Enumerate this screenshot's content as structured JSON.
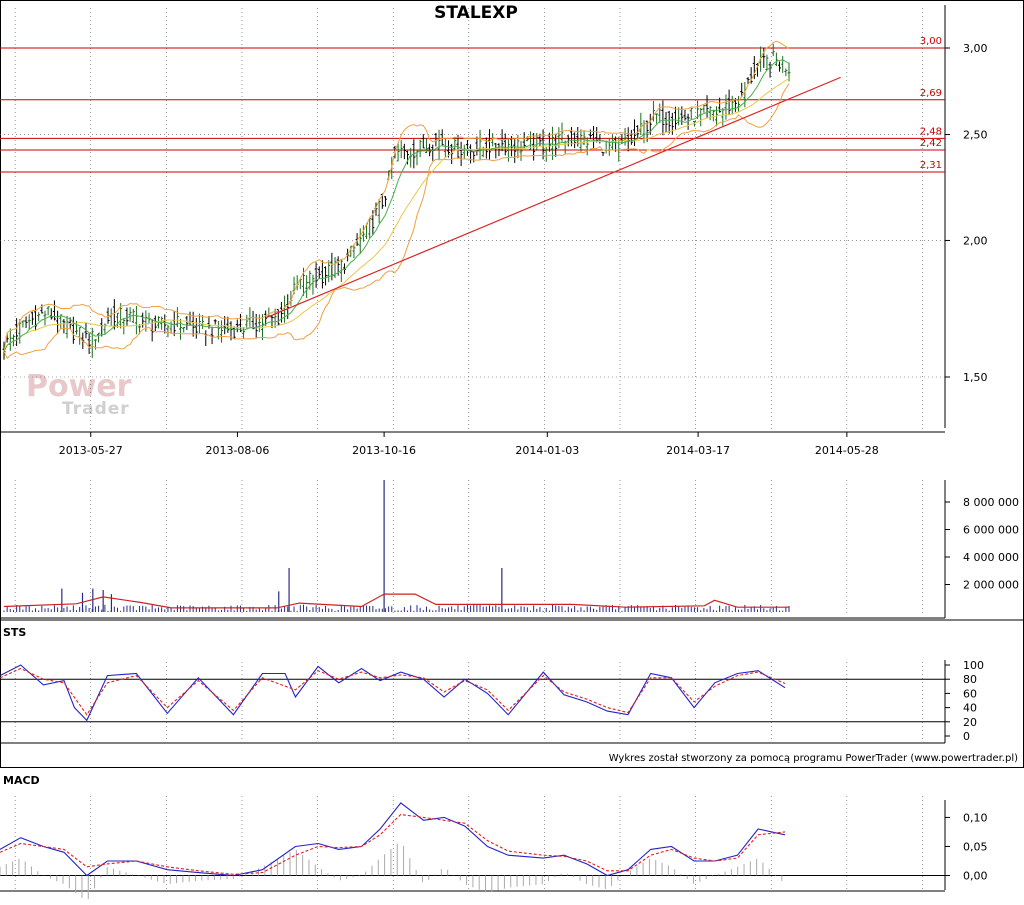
{
  "chart_data": [
    {
      "type": "candlestick",
      "title": "STALEXP",
      "x_ticks": [
        "2013-05-27",
        "2013-08-06",
        "2013-10-16",
        "2014-01-03",
        "2014-03-17",
        "2014-05-28"
      ],
      "y_ticks": [
        "1,50",
        "2,00",
        "2,50",
        "3,00"
      ],
      "y_tick_values": [
        1.5,
        2.0,
        2.5,
        3.0
      ],
      "y_scale": "log",
      "ylim": [
        1.32,
        3.1
      ],
      "date_range": [
        "2013-04-15",
        "2014-04-30"
      ],
      "grid": true,
      "horizontal_levels": [
        {
          "label": "3,00",
          "value": 3.0
        },
        {
          "label": "2,69",
          "value": 2.69
        },
        {
          "label": "2,48",
          "value": 2.48
        },
        {
          "label": "2,42",
          "value": 2.42
        },
        {
          "label": "2,31",
          "value": 2.31
        }
      ],
      "trendline": {
        "from": [
          "2013-08-20",
          1.7
        ],
        "to": [
          "2014-05-25",
          2.82
        ]
      },
      "close_path": [
        [
          "2013-04-15",
          1.6
        ],
        [
          "2013-04-25",
          1.68
        ],
        [
          "2013-05-06",
          1.72
        ],
        [
          "2013-05-16",
          1.66
        ],
        [
          "2013-05-27",
          1.62
        ],
        [
          "2013-06-06",
          1.71
        ],
        [
          "2013-06-17",
          1.7
        ],
        [
          "2013-06-27",
          1.67
        ],
        [
          "2013-07-08",
          1.68
        ],
        [
          "2013-07-18",
          1.66
        ],
        [
          "2013-07-29",
          1.66
        ],
        [
          "2013-08-06",
          1.66
        ],
        [
          "2013-08-16",
          1.68
        ],
        [
          "2013-08-26",
          1.7
        ],
        [
          "2013-09-05",
          1.83
        ],
        [
          "2013-09-16",
          1.86
        ],
        [
          "2013-09-26",
          1.9
        ],
        [
          "2013-10-07",
          2.03
        ],
        [
          "2013-10-16",
          2.18
        ],
        [
          "2013-10-21",
          2.4
        ],
        [
          "2013-10-31",
          2.42
        ],
        [
          "2013-11-11",
          2.47
        ],
        [
          "2013-11-21",
          2.42
        ],
        [
          "2013-12-02",
          2.43
        ],
        [
          "2013-12-12",
          2.45
        ],
        [
          "2013-12-23",
          2.44
        ],
        [
          "2014-01-03",
          2.45
        ],
        [
          "2014-01-13",
          2.48
        ],
        [
          "2014-01-24",
          2.47
        ],
        [
          "2014-02-03",
          2.43
        ],
        [
          "2014-02-13",
          2.47
        ],
        [
          "2014-02-24",
          2.6
        ],
        [
          "2014-03-06",
          2.58
        ],
        [
          "2014-03-17",
          2.61
        ],
        [
          "2014-03-27",
          2.62
        ],
        [
          "2014-04-07",
          2.7
        ],
        [
          "2014-04-14",
          2.88
        ],
        [
          "2014-04-22",
          2.93
        ],
        [
          "2014-04-30",
          2.88
        ]
      ],
      "colors": {
        "bars": "#1a6e1a",
        "bars_down": "#000000",
        "ma_short": "#4caf50",
        "ma_long": "#e6c84a",
        "bollinger": "#f0a040",
        "levels": "#cc0000",
        "trendline": "#dd2222"
      }
    },
    {
      "type": "bar",
      "name": "volume",
      "y_ticks": [
        "2 000 000",
        "4 000 000",
        "6 000 000",
        "8 000 000"
      ],
      "y_tick_values": [
        2000000,
        4000000,
        6000000,
        8000000
      ],
      "ylim": [
        0,
        9600000
      ],
      "spikes": [
        [
          "2013-05-13",
          1700000
        ],
        [
          "2013-05-23",
          1400000
        ],
        [
          "2013-05-28",
          1700000
        ],
        [
          "2013-06-02",
          1600000
        ],
        [
          "2013-06-06",
          1300000
        ],
        [
          "2013-08-26",
          1500000
        ],
        [
          "2013-08-31",
          3200000
        ],
        [
          "2013-10-16",
          9600000
        ],
        [
          "2013-12-12",
          3200000
        ]
      ],
      "avg_path": [
        [
          "2013-04-15",
          400000
        ],
        [
          "2013-05-20",
          600000
        ],
        [
          "2013-06-02",
          1100000
        ],
        [
          "2013-06-20",
          700000
        ],
        [
          "2013-07-05",
          300000
        ],
        [
          "2013-08-25",
          300000
        ],
        [
          "2013-09-05",
          650000
        ],
        [
          "2013-10-05",
          400000
        ],
        [
          "2013-10-16",
          1300000
        ],
        [
          "2013-10-31",
          1300000
        ],
        [
          "2013-11-10",
          550000
        ],
        [
          "2014-01-15",
          550000
        ],
        [
          "2014-02-10",
          350000
        ],
        [
          "2014-03-20",
          450000
        ],
        [
          "2014-03-25",
          850000
        ],
        [
          "2014-04-05",
          350000
        ],
        [
          "2014-04-30",
          350000
        ]
      ],
      "colors": {
        "bars": "#2a2a8a",
        "avg": "#cc2222"
      }
    },
    {
      "type": "line",
      "name": "STS",
      "label": "STS",
      "y_ticks": [
        "0",
        "20",
        "40",
        "60",
        "80",
        "100"
      ],
      "y_tick_values": [
        0,
        20,
        40,
        60,
        80,
        100
      ],
      "ylim": [
        0,
        100
      ],
      "reference_lines": [
        20,
        80
      ],
      "series": [
        {
          "values": [
            [
              "2013-04-15",
              85
            ],
            [
              "2013-04-25",
              100
            ],
            [
              "2013-05-06",
              72
            ],
            [
              "2013-05-16",
              78
            ],
            [
              "2013-05-21",
              40
            ],
            [
              "2013-05-27",
              22
            ],
            [
              "2013-06-06",
              85
            ],
            [
              "2013-06-20",
              88
            ],
            [
              "2013-07-05",
              32
            ],
            [
              "2013-07-20",
              82
            ],
            [
              "2013-08-06",
              30
            ],
            [
              "2013-08-20",
              88
            ],
            [
              "2013-08-31",
              88
            ],
            [
              "2013-09-05",
              55
            ],
            [
              "2013-09-16",
              98
            ],
            [
              "2013-09-26",
              75
            ],
            [
              "2013-10-07",
              95
            ],
            [
              "2013-10-16",
              78
            ],
            [
              "2013-10-26",
              90
            ],
            [
              "2013-11-06",
              80
            ],
            [
              "2013-11-16",
              55
            ],
            [
              "2013-11-26",
              80
            ],
            [
              "2013-12-07",
              60
            ],
            [
              "2013-12-17",
              30
            ],
            [
              "2014-01-03",
              90
            ],
            [
              "2014-01-13",
              58
            ],
            [
              "2014-01-24",
              48
            ],
            [
              "2014-02-03",
              35
            ],
            [
              "2014-02-13",
              30
            ],
            [
              "2014-02-24",
              88
            ],
            [
              "2014-03-06",
              82
            ],
            [
              "2014-03-17",
              40
            ],
            [
              "2014-03-27",
              75
            ],
            [
              "2014-04-07",
              88
            ],
            [
              "2014-04-17",
              92
            ],
            [
              "2014-04-30",
              68
            ]
          ]
        },
        {
          "values": [
            [
              "2013-04-15",
              82
            ],
            [
              "2013-04-25",
              95
            ],
            [
              "2013-05-06",
              80
            ],
            [
              "2013-05-16",
              75
            ],
            [
              "2013-05-27",
              30
            ],
            [
              "2013-06-06",
              75
            ],
            [
              "2013-06-20",
              85
            ],
            [
              "2013-07-05",
              40
            ],
            [
              "2013-07-20",
              78
            ],
            [
              "2013-08-06",
              36
            ],
            [
              "2013-08-20",
              82
            ],
            [
              "2013-09-05",
              65
            ],
            [
              "2013-09-16",
              92
            ],
            [
              "2013-09-26",
              80
            ],
            [
              "2013-10-07",
              90
            ],
            [
              "2013-10-16",
              82
            ],
            [
              "2013-10-26",
              86
            ],
            [
              "2013-11-06",
              82
            ],
            [
              "2013-11-16",
              62
            ],
            [
              "2013-11-26",
              78
            ],
            [
              "2013-12-07",
              65
            ],
            [
              "2013-12-17",
              36
            ],
            [
              "2014-01-03",
              85
            ],
            [
              "2014-01-13",
              62
            ],
            [
              "2014-01-24",
              52
            ],
            [
              "2014-02-03",
              40
            ],
            [
              "2014-02-13",
              33
            ],
            [
              "2014-02-24",
              82
            ],
            [
              "2014-03-06",
              82
            ],
            [
              "2014-03-17",
              48
            ],
            [
              "2014-03-27",
              70
            ],
            [
              "2014-04-07",
              85
            ],
            [
              "2014-04-17",
              90
            ],
            [
              "2014-04-30",
              74
            ]
          ]
        }
      ],
      "colors": {
        "k": "#2222cc",
        "d": "#dd2222",
        "ref": "#000000"
      }
    },
    {
      "type": "line",
      "name": "MACD",
      "label": "MACD",
      "y_ticks": [
        "0,00",
        "0,05",
        "0,10"
      ],
      "y_tick_values": [
        0.0,
        0.05,
        0.1
      ],
      "ylim": [
        -0.025,
        0.13
      ],
      "series": [
        {
          "values": [
            [
              "2013-04-15",
              0.045
            ],
            [
              "2013-04-25",
              0.065
            ],
            [
              "2013-05-06",
              0.05
            ],
            [
              "2013-05-16",
              0.04
            ],
            [
              "2013-05-27",
              0.0
            ],
            [
              "2013-06-06",
              0.025
            ],
            [
              "2013-06-20",
              0.025
            ],
            [
              "2013-07-05",
              0.01
            ],
            [
              "2013-07-20",
              0.005
            ],
            [
              "2013-08-06",
              0.0
            ],
            [
              "2013-08-20",
              0.01
            ],
            [
              "2013-09-05",
              0.05
            ],
            [
              "2013-09-16",
              0.055
            ],
            [
              "2013-09-26",
              0.045
            ],
            [
              "2013-10-07",
              0.05
            ],
            [
              "2013-10-16",
              0.08
            ],
            [
              "2013-10-26",
              0.125
            ],
            [
              "2013-11-06",
              0.095
            ],
            [
              "2013-11-16",
              0.1
            ],
            [
              "2013-11-26",
              0.085
            ],
            [
              "2013-12-07",
              0.05
            ],
            [
              "2013-12-17",
              0.035
            ],
            [
              "2014-01-03",
              0.03
            ],
            [
              "2014-01-13",
              0.035
            ],
            [
              "2014-01-24",
              0.02
            ],
            [
              "2014-02-03",
              0.0
            ],
            [
              "2014-02-13",
              0.01
            ],
            [
              "2014-02-24",
              0.045
            ],
            [
              "2014-03-06",
              0.05
            ],
            [
              "2014-03-17",
              0.025
            ],
            [
              "2014-03-27",
              0.025
            ],
            [
              "2014-04-07",
              0.035
            ],
            [
              "2014-04-17",
              0.08
            ],
            [
              "2014-04-30",
              0.07
            ]
          ]
        },
        {
          "values": [
            [
              "2013-04-15",
              0.04
            ],
            [
              "2013-04-25",
              0.055
            ],
            [
              "2013-05-06",
              0.05
            ],
            [
              "2013-05-16",
              0.045
            ],
            [
              "2013-05-27",
              0.015
            ],
            [
              "2013-06-06",
              0.02
            ],
            [
              "2013-06-20",
              0.025
            ],
            [
              "2013-07-05",
              0.015
            ],
            [
              "2013-07-20",
              0.008
            ],
            [
              "2013-08-06",
              0.002
            ],
            [
              "2013-08-20",
              0.005
            ],
            [
              "2013-09-05",
              0.035
            ],
            [
              "2013-09-16",
              0.05
            ],
            [
              "2013-09-26",
              0.048
            ],
            [
              "2013-10-07",
              0.05
            ],
            [
              "2013-10-16",
              0.07
            ],
            [
              "2013-10-26",
              0.105
            ],
            [
              "2013-11-06",
              0.1
            ],
            [
              "2013-11-16",
              0.095
            ],
            [
              "2013-11-26",
              0.09
            ],
            [
              "2013-12-07",
              0.06
            ],
            [
              "2013-12-17",
              0.042
            ],
            [
              "2014-01-03",
              0.035
            ],
            [
              "2014-01-13",
              0.033
            ],
            [
              "2014-01-24",
              0.025
            ],
            [
              "2014-02-03",
              0.008
            ],
            [
              "2014-02-13",
              0.008
            ],
            [
              "2014-02-24",
              0.035
            ],
            [
              "2014-03-06",
              0.045
            ],
            [
              "2014-03-17",
              0.03
            ],
            [
              "2014-03-27",
              0.025
            ],
            [
              "2014-04-07",
              0.03
            ],
            [
              "2014-04-17",
              0.07
            ],
            [
              "2014-04-30",
              0.075
            ]
          ]
        }
      ],
      "colors": {
        "macd": "#2222cc",
        "signal": "#dd2222",
        "histogram": "#aaaaaa"
      }
    }
  ],
  "watermark": {
    "line1": "Power",
    "line2": "Trader"
  },
  "footer": "Wykres został stworzony za pomocą programu PowerTrader (www.powertrader.pl)"
}
